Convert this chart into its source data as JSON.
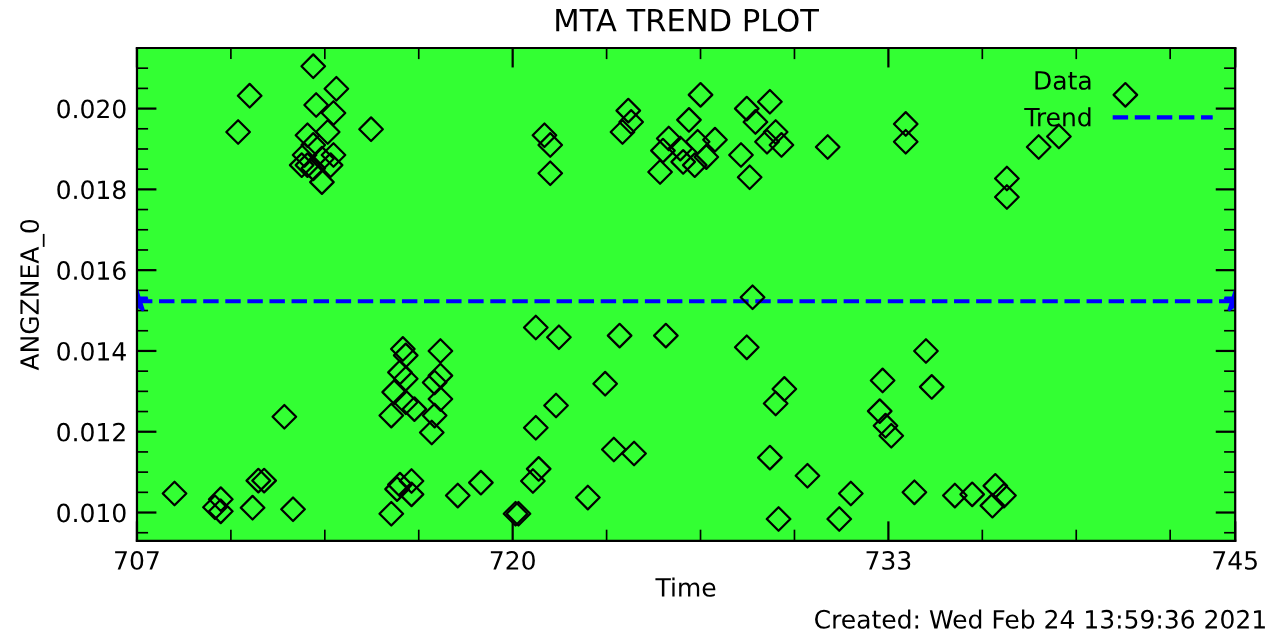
{
  "chart_data": {
    "type": "scatter",
    "title": "MTA TREND PLOT",
    "xlabel": "Time",
    "ylabel": "ANGZNEA_0",
    "annotations": [
      "Created: Wed Feb 24 13:59:36 2021"
    ],
    "xlim": [
      707,
      745
    ],
    "xticks": [
      707,
      720,
      733,
      745
    ],
    "ylim": [
      0.0093,
      0.0215
    ],
    "yticks": [
      {
        "value": 0.01,
        "label": "0.010"
      },
      {
        "value": 0.012,
        "label": "0.012"
      },
      {
        "value": 0.014,
        "label": "0.014"
      },
      {
        "value": 0.016,
        "label": "0.016"
      },
      {
        "value": 0.018,
        "label": "0.018"
      },
      {
        "value": 0.02,
        "label": "0.020"
      }
    ],
    "grid": false,
    "legend": "top right",
    "series": [
      {
        "name": "Data",
        "color": "#000000",
        "marker": "diamond",
        "x": [
          710.5,
          710.9,
          713.1,
          713.9,
          713.2,
          713.8,
          715.1,
          712.9,
          713.1,
          712.8,
          713.4,
          713.6,
          713.8,
          712.7,
          713.1,
          713.4,
          713.7,
          712.9,
          708.3,
          709.7,
          709.9,
          709.9,
          711.0,
          711.2,
          711.4,
          712.1,
          712.4,
          716.2,
          716.3,
          716.1,
          715.9,
          716.3,
          715.8,
          716.6,
          716.3,
          717.5,
          717.5,
          717.3,
          717.5,
          717.3,
          717.2,
          715.8,
          716.0,
          716.1,
          716.5,
          716.5,
          718.1,
          718.9,
          720.1,
          721.1,
          721.3,
          721.3,
          724.0,
          724.1,
          723.8,
          726.5,
          726.1,
          725.4,
          725.2,
          725.1,
          725.8,
          725.9,
          726.4,
          726.3,
          727.0,
          726.7,
          727.9,
          728.2,
          728.1,
          728.4,
          728.9,
          729.1,
          728.8,
          729.3,
          730.9,
          728.3,
          720.8,
          721.6,
          723.7,
          725.3,
          728.1,
          723.2,
          721.5,
          720.8,
          729.4,
          729.1,
          723.5,
          724.2,
          720.9,
          720.7,
          722.6,
          720.2,
          728.9,
          730.2,
          731.7,
          729.2,
          731.3,
          732.8,
          732.7,
          732.9,
          733.1,
          733.6,
          733.6,
          741.2,
          738.2,
          738.9,
          737.1,
          737.1,
          734.3,
          734.5,
          733.9,
          735.3,
          735.9,
          736.7,
          737.0,
          736.6
        ],
        "values": [
          0.01942,
          0.02032,
          0.02105,
          0.02049,
          0.02009,
          0.01989,
          0.01949,
          0.01934,
          0.0191,
          0.01885,
          0.01876,
          0.01942,
          0.01885,
          0.0186,
          0.01852,
          0.01818,
          0.0186,
          0.0186,
          0.01047,
          0.01013,
          0.01033,
          0.01003,
          0.01012,
          0.01079,
          0.01079,
          0.01237,
          0.01008,
          0.01405,
          0.01389,
          0.01347,
          0.01298,
          0.01273,
          0.0124,
          0.01256,
          0.01331,
          0.014,
          0.01339,
          0.01322,
          0.01281,
          0.0124,
          0.01198,
          0.00997,
          0.01058,
          0.01069,
          0.01078,
          0.01045,
          0.01042,
          0.01074,
          0.00997,
          0.01934,
          0.0191,
          0.0184,
          0.01995,
          0.01967,
          0.01942,
          0.02034,
          0.01972,
          0.01926,
          0.01896,
          0.01843,
          0.01901,
          0.01868,
          0.01918,
          0.0186,
          0.01923,
          0.0188,
          0.01885,
          0.0183,
          0.02,
          0.01967,
          0.02017,
          0.01942,
          0.01918,
          0.0191,
          0.01905,
          0.01533,
          0.01458,
          0.01434,
          0.01438,
          0.01438,
          0.01409,
          0.01319,
          0.01265,
          0.0121,
          0.01306,
          0.0127,
          0.01156,
          0.01146,
          0.01108,
          0.01078,
          0.01037,
          0.00997,
          0.01136,
          0.01091,
          0.01047,
          0.00984,
          0.00984,
          0.01327,
          0.01251,
          0.01215,
          0.0119,
          0.01962,
          0.01918,
          0.02034,
          0.01905,
          0.01931,
          0.01827,
          0.01781,
          0.014,
          0.01311,
          0.0105,
          0.01042,
          0.01045,
          0.01066,
          0.01042,
          0.01017
        ]
      },
      {
        "name": "Trend",
        "type": "line",
        "color": "#0000ff",
        "line_style": "dashed",
        "marker": "star",
        "x": [
          707,
          745
        ],
        "values": [
          0.01523,
          0.01523
        ]
      }
    ]
  }
}
